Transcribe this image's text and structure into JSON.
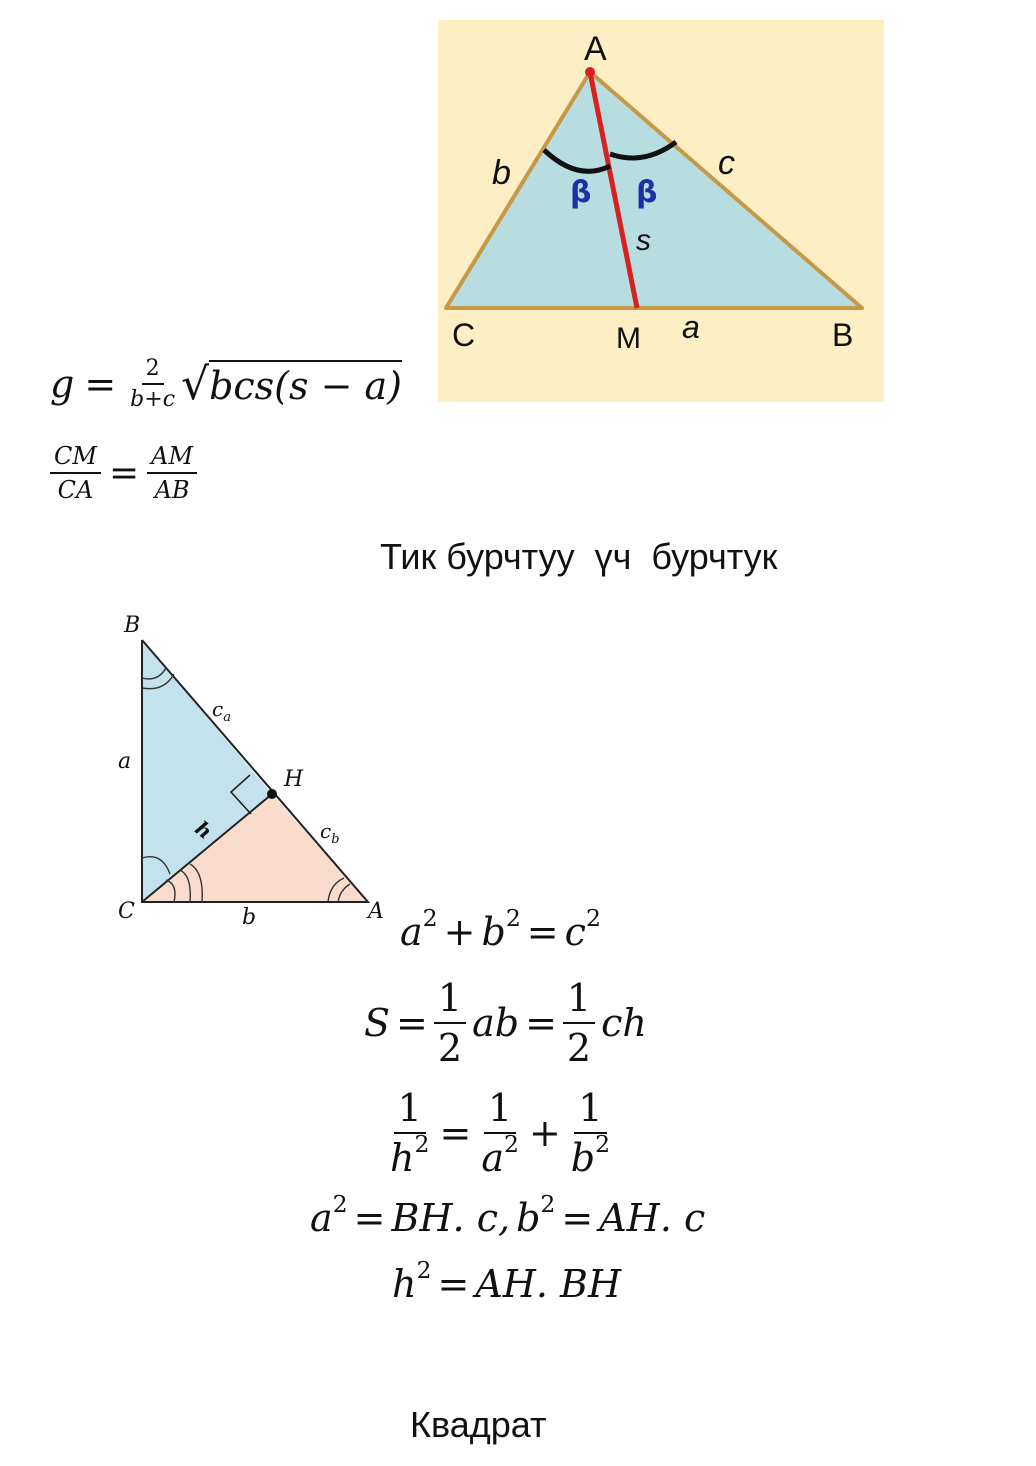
{
  "figure_bisector": {
    "vertex_a": "A",
    "vertex_b": "B",
    "vertex_c": "C",
    "point_m": "M",
    "side_b": "b",
    "side_c": "c",
    "side_a": "a",
    "segment_s": "s",
    "angle_left": "β",
    "angle_right": "β",
    "colors": {
      "background": "#fdeec4",
      "fill": "#b8dde0",
      "bisector": "#d82020",
      "angle_label": "#1f2fa8"
    }
  },
  "formula_bisector": {
    "lhs": "g",
    "num": "2",
    "den": "b+c",
    "radicand": "bcs(s − a)"
  },
  "formula_ratio": {
    "left_num": "CM",
    "left_den": "CA",
    "right_num": "AM",
    "right_den": "AB"
  },
  "heading_right_triangle": "Тик бурчтуу  үч  бурчтук",
  "figure_right_triangle": {
    "vertex_b": "B",
    "vertex_c": "C",
    "vertex_a": "A",
    "point_h": "H",
    "side_a": "a",
    "side_b": "b",
    "height": "h",
    "segment_ca": "c",
    "segment_ca_sub": "a",
    "segment_cb": "c",
    "segment_cb_sub": "b",
    "colors": {
      "blue": "#c3e2ee",
      "peach": "#f9dccb"
    }
  },
  "formulas": {
    "pythagoras": {
      "a": "a",
      "b": "b",
      "c": "c",
      "exp": "2"
    },
    "area": {
      "S": "S",
      "one": "1",
      "two": "2",
      "ab": "ab",
      "ch": "ch"
    },
    "height_rel": {
      "one": "1",
      "h": "h",
      "a": "a",
      "b": "b",
      "exp": "2"
    },
    "projections": {
      "a": "a",
      "b": "b",
      "exp": "2",
      "rhs1": "BH. c,",
      "rhs2": "AH. c"
    },
    "height_sq": {
      "h": "h",
      "exp": "2",
      "rhs": "AH. BH"
    }
  },
  "heading_square": "Квадрат"
}
